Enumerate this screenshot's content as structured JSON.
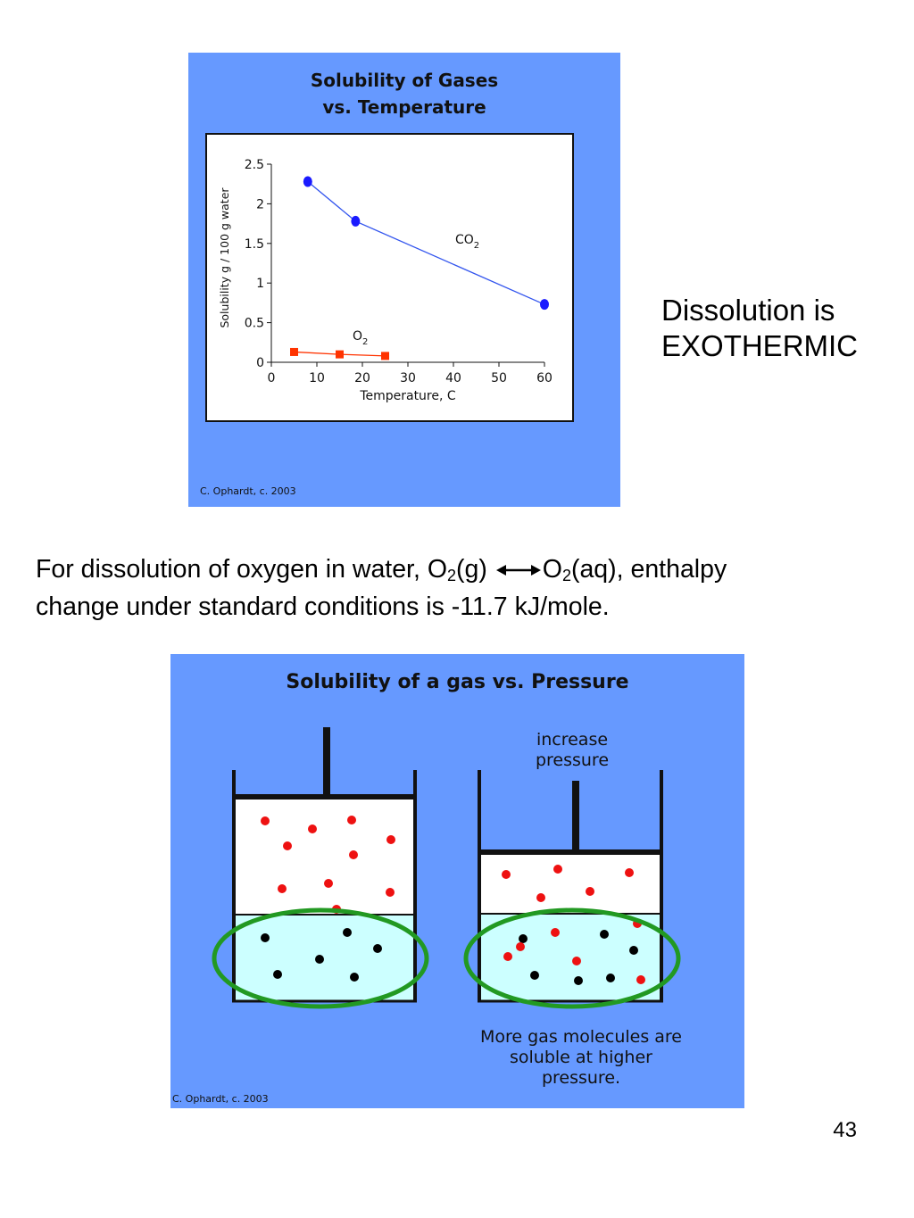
{
  "chart_data": [
    {
      "type": "line",
      "title": "Solubility of Gases",
      "subtitle": "vs. Temperature",
      "xlabel": "Temperature, C",
      "ylabel": "Solubility g / 100 g water",
      "xlim": [
        0,
        60
      ],
      "ylim": [
        0,
        2.5
      ],
      "x_ticks": [
        0,
        10,
        20,
        30,
        40,
        50,
        60
      ],
      "y_ticks": [
        0,
        0.5,
        1,
        1.5,
        2,
        2.5
      ],
      "y_tick_labels": [
        "0",
        "0.5",
        "1",
        "1.5",
        "2",
        "2.5"
      ],
      "grid": false,
      "series": [
        {
          "name": "CO2",
          "label_main": "CO",
          "label_sub": "2",
          "color": "#1a1aff",
          "line_color": "#3355ee",
          "marker": "circle",
          "points": [
            {
              "x": 8,
              "y": 2.28
            },
            {
              "x": 18.5,
              "y": 1.78
            },
            {
              "x": 60,
              "y": 0.73
            }
          ]
        },
        {
          "name": "O2",
          "label_main": "O",
          "label_sub": "2",
          "color": "#ff3300",
          "line_color": "#ff3300",
          "marker": "square",
          "points": [
            {
              "x": 5,
              "y": 0.13
            },
            {
              "x": 15,
              "y": 0.1
            },
            {
              "x": 25,
              "y": 0.08
            }
          ]
        }
      ],
      "credit": "C. Ophardt, c. 2003"
    }
  ],
  "side_note": {
    "line1": "Dissolution is",
    "line2": "EXOTHERMIC"
  },
  "equation": {
    "prefix": "For dissolution of oxygen in water, O",
    "sub1": "2",
    "state1": "(g)",
    "o_symbol": "O",
    "sub2": "2",
    "state2_rest": "(aq), enthalpy",
    "line2": "change under standard conditions is -11.7 kJ/mole."
  },
  "pressure_diagram": {
    "title": "Solubility of a gas vs. Pressure",
    "increase_label_line1": "increase",
    "increase_label_line2": "pressure",
    "caption_line1": "More gas molecules are",
    "caption_line2": "soluble at higher",
    "caption_line3": "pressure.",
    "credit": "C. Ophardt, c. 2003",
    "colors": {
      "background": "#6699ff",
      "gas_space": "#ffffff",
      "liquid": "#ccffff",
      "gas_molecule": "#ee1111",
      "dissolved_molecule": "#000000",
      "highlight_ellipse": "#229922"
    }
  },
  "page_number": "43"
}
